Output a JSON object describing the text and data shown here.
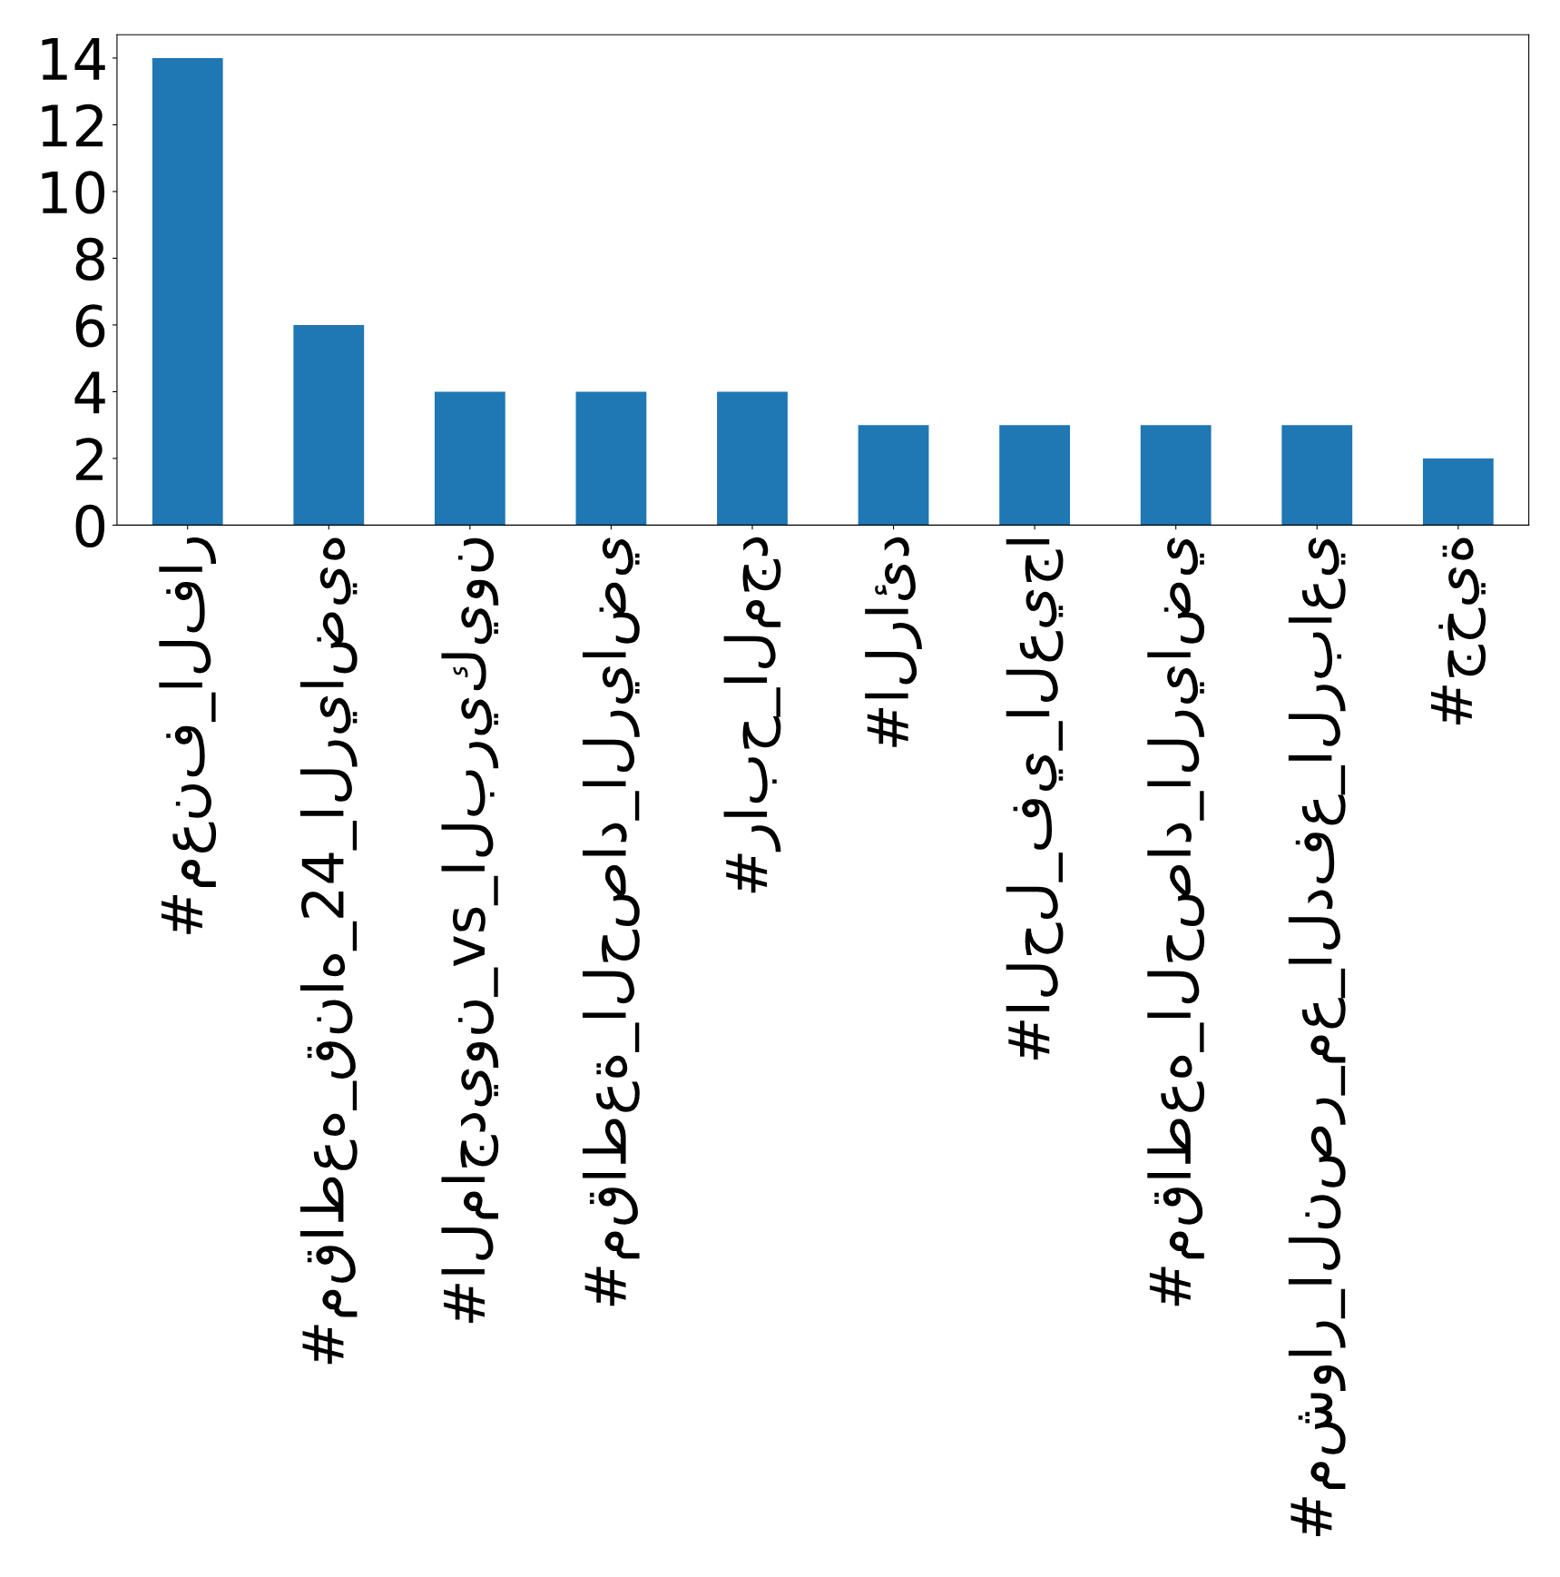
{
  "chart_data": {
    "type": "bar",
    "categories": [
      "#معنف_الفار",
      "#مقاطعه_قناه_24_الرياضيه",
      "#الماجديون_vs_البريكيون",
      "#مقاطعة_الحصاد_الرياضي",
      "#رابح_المجد",
      "#الرائد",
      "#الحل_في_العيجا",
      "#مقاطعه_الحصاد_الرياضي",
      "#مشوار_النصر_مع_الدفع_الرباعي",
      "#جخية"
    ],
    "values": [
      14,
      6,
      4,
      4,
      4,
      3,
      3,
      3,
      3,
      2
    ],
    "color": "#1f77b4",
    "ylim": [
      0,
      14.7
    ],
    "yticks": [
      0,
      2,
      4,
      6,
      8,
      10,
      12,
      14
    ],
    "grid": false
  }
}
